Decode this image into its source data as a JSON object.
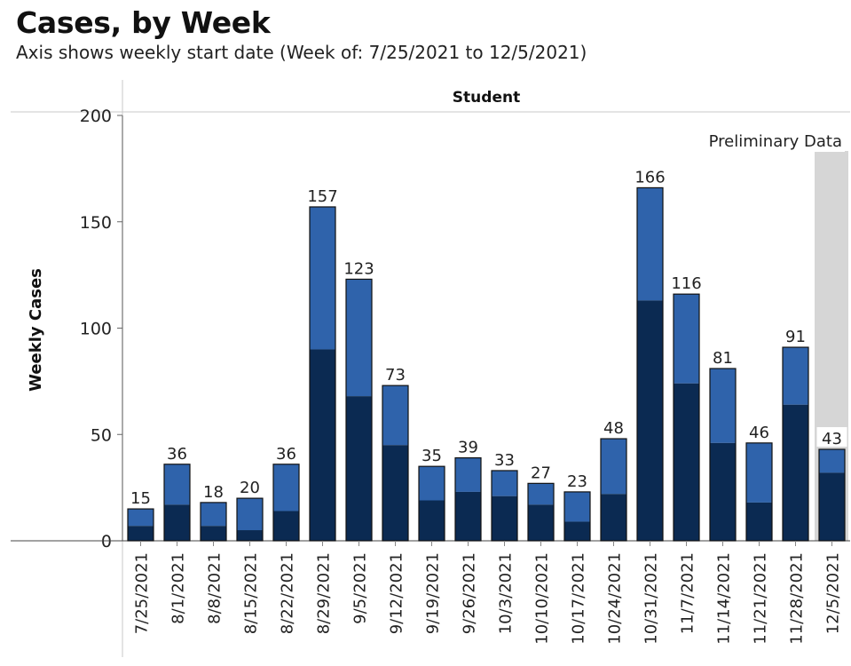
{
  "title": "Cases, by Week",
  "subtitle": "Axis shows weekly start date (Week of: 7/25/2021 to 12/5/2021)",
  "chart_data": {
    "type": "bar",
    "stacked": true,
    "panel_header": "Student",
    "ylabel": "Weekly Cases",
    "ylim": [
      0,
      200
    ],
    "yticks": [
      0,
      50,
      100,
      150,
      200
    ],
    "categories": [
      "7/25/2021",
      "8/1/2021",
      "8/8/2021",
      "8/15/2021",
      "8/22/2021",
      "8/29/2021",
      "9/5/2021",
      "9/12/2021",
      "9/19/2021",
      "9/26/2021",
      "10/3/2021",
      "10/10/2021",
      "10/17/2021",
      "10/24/2021",
      "10/31/2021",
      "11/7/2021",
      "11/14/2021",
      "11/21/2021",
      "11/28/2021",
      "12/5/2021"
    ],
    "totals": [
      15,
      36,
      18,
      20,
      36,
      157,
      123,
      73,
      35,
      39,
      33,
      27,
      23,
      48,
      166,
      116,
      81,
      46,
      91,
      43
    ],
    "series": [
      {
        "name": "lower segment",
        "color": "#0b2a52",
        "values": [
          7,
          17,
          7,
          5,
          14,
          90,
          68,
          45,
          19,
          23,
          21,
          17,
          9,
          22,
          113,
          74,
          46,
          18,
          64,
          32
        ]
      },
      {
        "name": "upper segment",
        "color": "#2f63ab",
        "values": [
          8,
          19,
          11,
          15,
          22,
          67,
          55,
          28,
          16,
          16,
          12,
          10,
          14,
          26,
          53,
          42,
          35,
          28,
          27,
          11
        ]
      }
    ],
    "annotation": "Preliminary Data",
    "preliminary_category": "12/5/2021"
  }
}
